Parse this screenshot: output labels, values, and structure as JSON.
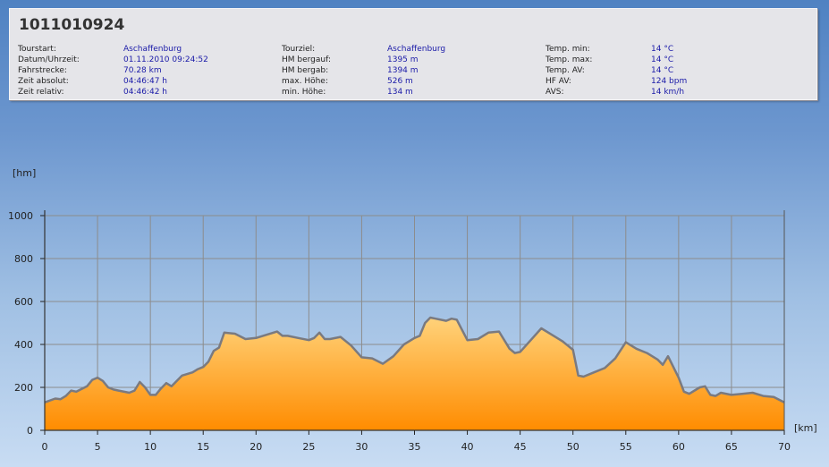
{
  "header": {
    "title": "1011010924",
    "columns": [
      [
        {
          "label": "Tourstart:",
          "value": "Aschaffenburg"
        },
        {
          "label": "Datum/Uhrzeit:",
          "value": "01.11.2010 09:24:52"
        },
        {
          "label": "Fahrstrecke:",
          "value": "70.28 km"
        },
        {
          "label": "Zeit absolut:",
          "value": "04:46:47 h"
        },
        {
          "label": "Zeit relativ:",
          "value": "04:46:42 h"
        }
      ],
      [
        {
          "label": "Tourziel:",
          "value": "Aschaffenburg"
        },
        {
          "label": "HM bergauf:",
          "value": "1395 m"
        },
        {
          "label": "HM bergab:",
          "value": "1394 m"
        },
        {
          "label": "max. Höhe:",
          "value": "526 m"
        },
        {
          "label": "min. Höhe:",
          "value": "134 m"
        }
      ],
      [
        {
          "label": "Temp. min:",
          "value": "14 °C"
        },
        {
          "label": "Temp. max:",
          "value": "14 °C"
        },
        {
          "label": "Temp. AV:",
          "value": "14 °C"
        },
        {
          "label": "HF AV:",
          "value": "124 bpm"
        },
        {
          "label": "AVS:",
          "value": "14 km/h"
        }
      ]
    ]
  },
  "chart_data": {
    "type": "area",
    "title": "",
    "xlabel": "[km]",
    "ylabel": "[hm]",
    "xlim": [
      0,
      70
    ],
    "ylim": [
      0,
      1000
    ],
    "x_ticks": [
      0,
      5,
      10,
      15,
      20,
      25,
      30,
      35,
      40,
      45,
      50,
      55,
      60,
      65,
      70
    ],
    "y_ticks": [
      0,
      200,
      400,
      600,
      800,
      1000
    ],
    "grid": true,
    "colors": {
      "fill_top": "#ffd27a",
      "fill_bottom": "#ff8c00",
      "line": "#7a7a80",
      "grid": "#8c8c8c"
    },
    "series": [
      {
        "x": [
          0,
          1,
          1.5,
          2,
          2.5,
          3,
          4,
          4.5,
          5,
          5.5,
          6,
          6.5,
          7,
          8,
          8.5,
          9,
          9.5,
          10,
          10.5,
          11,
          11.5,
          12,
          13,
          14,
          14.5,
          15,
          15.5,
          16,
          16.5,
          17,
          18,
          19,
          20,
          21,
          22,
          22.5,
          23,
          24,
          25,
          25.5,
          26,
          26.5,
          27,
          28,
          29,
          30,
          31,
          32,
          33,
          34,
          35,
          35.5,
          36,
          36.5,
          37,
          38,
          38.5,
          39,
          40,
          41,
          42,
          43,
          44,
          44.5,
          45,
          46,
          47,
          48,
          49,
          50,
          50.5,
          51,
          52,
          53,
          54,
          55,
          56,
          57,
          58,
          58.5,
          59,
          60,
          60.5,
          61,
          62,
          62.5,
          63,
          63.5,
          64,
          65,
          66,
          67,
          68,
          69,
          70
        ],
        "y": [
          130,
          148,
          145,
          160,
          185,
          180,
          205,
          235,
          245,
          230,
          200,
          190,
          185,
          175,
          185,
          225,
          200,
          165,
          165,
          195,
          220,
          205,
          255,
          270,
          285,
          295,
          320,
          370,
          385,
          455,
          450,
          425,
          430,
          445,
          460,
          440,
          440,
          430,
          420,
          430,
          455,
          425,
          425,
          435,
          395,
          340,
          335,
          310,
          345,
          400,
          430,
          440,
          500,
          525,
          520,
          510,
          520,
          515,
          420,
          425,
          455,
          460,
          380,
          360,
          365,
          420,
          475,
          445,
          415,
          375,
          255,
          250,
          270,
          290,
          335,
          410,
          380,
          360,
          330,
          305,
          345,
          245,
          180,
          170,
          200,
          205,
          165,
          160,
          175,
          165,
          170,
          175,
          160,
          155,
          130
        ]
      }
    ]
  }
}
